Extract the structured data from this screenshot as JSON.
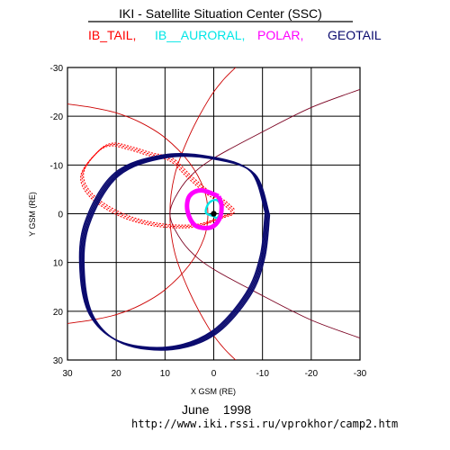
{
  "header": {
    "title": "IKI - Satellite Situation Center (SSC)",
    "missions": [
      {
        "label": "IB_TAIL,",
        "color": "#ff0000"
      },
      {
        "label": "IB__AURORAL,",
        "color": "#00e6e6"
      },
      {
        "label": "POLAR,",
        "color": "#ff00ff"
      },
      {
        "label": "GEOTAIL",
        "color": "#0a0a6e"
      }
    ]
  },
  "footer": {
    "date": "June    1998",
    "url": "http://www.iki.rssi.ru/vprokhor/camp2.htm"
  },
  "chart_data": {
    "type": "line",
    "xlabel": "X GSM (RE)",
    "ylabel": "Y GSM (RE)",
    "xlim": [
      30,
      -30
    ],
    "ylim": [
      30,
      -30
    ],
    "xticks": [
      30,
      20,
      10,
      0,
      -10,
      -20,
      -30
    ],
    "yticks": [
      -30,
      -20,
      -10,
      0,
      10,
      20,
      30
    ],
    "grid": true,
    "series": [
      {
        "name": "IB_TAIL",
        "color": "#ff0000",
        "style": "dotted",
        "points": [
          [
            -4,
            0
          ],
          [
            -2,
            0.6
          ],
          [
            4,
            2.5
          ],
          [
            12,
            2.2
          ],
          [
            19,
            0.2
          ],
          [
            25,
            -3.6
          ],
          [
            27,
            -8.0
          ],
          [
            24,
            -12.5
          ],
          [
            21,
            -14.2
          ],
          [
            17,
            -13.4
          ],
          [
            13,
            -12.2
          ],
          [
            10,
            -11.6
          ],
          [
            8,
            -10.6
          ],
          [
            5,
            -7.6
          ],
          [
            1,
            -4.2
          ],
          [
            -2,
            -2.4
          ],
          [
            -4,
            -0.6
          ]
        ]
      },
      {
        "name": "IB__AURORAL",
        "color": "#00e6e6",
        "style": "solid",
        "points": [
          [
            0,
            0.5
          ],
          [
            1.6,
            -0.2
          ],
          [
            1.0,
            -2.2
          ],
          [
            -0.6,
            -2.8
          ],
          [
            -1.6,
            -1.2
          ],
          [
            -0.8,
            0.8
          ],
          [
            0,
            0.5
          ]
        ]
      },
      {
        "name": "POLAR",
        "color": "#ff00ff",
        "style": "solid",
        "points": [
          [
            -1,
            -3.6
          ],
          [
            2.6,
            -4.8
          ],
          [
            5,
            -3.6
          ],
          [
            5.4,
            -0.6
          ],
          [
            3.8,
            2.4
          ],
          [
            0.6,
            2.8
          ],
          [
            -1.2,
            1.0
          ],
          [
            -1.6,
            -1.6
          ],
          [
            -1,
            -3.6
          ]
        ]
      },
      {
        "name": "GEOTAIL",
        "color": "#0a0a6e",
        "style": "solid",
        "points": [
          [
            -11,
            0
          ],
          [
            -8,
            -8.4
          ],
          [
            0,
            -11.4
          ],
          [
            10,
            -11.8
          ],
          [
            20,
            -8.0
          ],
          [
            26,
            2.0
          ],
          [
            27,
            12.0
          ],
          [
            25,
            21.0
          ],
          [
            19,
            26.4
          ],
          [
            9,
            27.6
          ],
          [
            0,
            24.4
          ],
          [
            -7,
            16.6
          ],
          [
            -10,
            8.8
          ],
          [
            -11,
            0
          ]
        ]
      }
    ],
    "model_curves": [
      {
        "color": "#cc0000",
        "points": [
          [
            30,
            -22.5
          ],
          [
            25,
            -21.8
          ],
          [
            20,
            -20.7
          ],
          [
            15,
            -18.7
          ],
          [
            10,
            -15.6
          ],
          [
            5,
            -10.5
          ],
          [
            2,
            -5.0
          ],
          [
            1.2,
            0
          ],
          [
            2,
            5.0
          ],
          [
            5,
            10.5
          ],
          [
            10,
            15.6
          ],
          [
            15,
            18.7
          ],
          [
            20,
            20.7
          ],
          [
            25,
            21.8
          ],
          [
            30,
            22.5
          ]
        ]
      },
      {
        "color": "#cc0000",
        "points": [
          [
            -5,
            -30.5
          ],
          [
            -2,
            -27.5
          ],
          [
            1,
            -23.5
          ],
          [
            5,
            -16.0
          ],
          [
            8,
            -8.0
          ],
          [
            9,
            0
          ],
          [
            8,
            8.0
          ],
          [
            5,
            16.0
          ],
          [
            1,
            23.5
          ],
          [
            -2,
            27.5
          ],
          [
            -5,
            30.5
          ]
        ]
      },
      {
        "color": "#7a0020",
        "points": [
          [
            -30,
            -25.5
          ],
          [
            -20,
            -21.8
          ],
          [
            -10,
            -16.8
          ],
          [
            0,
            -11.4
          ],
          [
            5,
            -7.5
          ],
          [
            8,
            -3.2
          ],
          [
            9,
            0
          ],
          [
            8,
            3.2
          ],
          [
            5,
            7.5
          ],
          [
            0,
            11.4
          ],
          [
            -10,
            16.8
          ],
          [
            -20,
            21.8
          ],
          [
            -30,
            25.5
          ]
        ]
      }
    ]
  }
}
